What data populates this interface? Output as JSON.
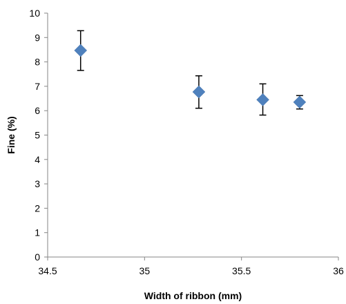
{
  "chart_data": {
    "type": "scatter",
    "title": "",
    "xlabel": "Width of ribbon (mm)",
    "ylabel": "Fine (%)",
    "xlim": [
      34.5,
      36
    ],
    "ylim": [
      0,
      10
    ],
    "xticks": [
      34.5,
      35,
      35.5,
      36
    ],
    "xtick_labels": [
      "34.5",
      "35",
      "35.5",
      "36"
    ],
    "yticks": [
      0,
      1,
      2,
      3,
      4,
      5,
      6,
      7,
      8,
      9,
      10
    ],
    "ytick_labels": [
      "0",
      "1",
      "2",
      "3",
      "4",
      "5",
      "6",
      "7",
      "8",
      "9",
      "10"
    ],
    "grid": false,
    "legend": "none",
    "series": [
      {
        "marker": "diamond",
        "color": "#4f81bd",
        "points": [
          {
            "x": 34.67,
            "y": 8.47,
            "err_low": 7.65,
            "err_high": 9.28
          },
          {
            "x": 35.28,
            "y": 6.77,
            "err_low": 6.1,
            "err_high": 7.43
          },
          {
            "x": 35.61,
            "y": 6.45,
            "err_low": 5.82,
            "err_high": 7.1
          },
          {
            "x": 35.8,
            "y": 6.35,
            "err_low": 6.07,
            "err_high": 6.62
          }
        ]
      }
    ]
  }
}
